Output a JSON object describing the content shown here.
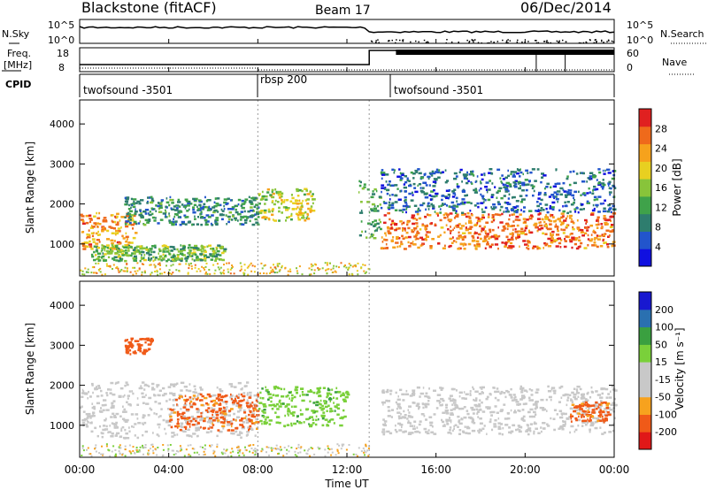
{
  "header": {
    "site": "Blackstone (fitACF)",
    "beam": "Beam 17",
    "date": "06/Dec/2014"
  },
  "summary": {
    "nsky_label": "N.Sky",
    "nsearch_label": "N.Search",
    "noise_ticks": [
      "10^5",
      "10^0"
    ],
    "freq_label_1": "Freq.",
    "freq_label_2": "[MHz]",
    "freq_ticks": [
      "18",
      "8"
    ],
    "nave_label": "Nave",
    "nave_ticks": [
      "60",
      "0"
    ],
    "cpid_label": "CPID",
    "cpid_segments": [
      {
        "name": "twofsound -3501",
        "start_h": 0.0,
        "end_h": 8.0
      },
      {
        "name": "rbsp 200",
        "start_h": 8.0,
        "end_h": 13.0
      },
      {
        "name": "twofsound -3501",
        "start_h": 13.0,
        "end_h": 24.0
      }
    ]
  },
  "colors": {
    "power_scale": [
      "#1010e0",
      "#2255cc",
      "#2e7d6e",
      "#3fa24a",
      "#88c43a",
      "#e8d020",
      "#f6a21c",
      "#ef6a1b",
      "#e02020"
    ],
    "velocity_scale": [
      "#e01818",
      "#f05a18",
      "#f7a21e",
      "#c8c8c8",
      "#c8c8c8",
      "#7ad03a",
      "#3aa040",
      "#2a70b0",
      "#1818d0"
    ]
  },
  "chart_data": [
    {
      "type": "heatmap",
      "ylabel": "Slant Range [km]",
      "yticks": [
        "1000",
        "2000",
        "3000",
        "4000"
      ],
      "ylim": [
        200,
        4600
      ],
      "colorbar_label": "Power [dB]",
      "colorbar_ticks": [
        "4",
        "8",
        "12",
        "16",
        "20",
        "24",
        "28"
      ],
      "regions": [
        {
          "t0": 0.0,
          "t1": 2.5,
          "r_low": 900,
          "r_high": 1800,
          "value": 24
        },
        {
          "t0": 0.5,
          "t1": 6.5,
          "r_low": 600,
          "r_high": 1000,
          "value": 14
        },
        {
          "t0": 2.0,
          "t1": 8.0,
          "r_low": 1500,
          "r_high": 2200,
          "value": 10
        },
        {
          "t0": 8.0,
          "t1": 10.5,
          "r_low": 1600,
          "r_high": 2400,
          "value": 18
        },
        {
          "t0": 12.5,
          "t1": 13.5,
          "r_low": 1100,
          "r_high": 2600,
          "value": 12
        },
        {
          "t0": 13.5,
          "t1": 24.0,
          "r_low": 900,
          "r_high": 1800,
          "value": 26
        },
        {
          "t0": 13.5,
          "t1": 24.0,
          "r_low": 1800,
          "r_high": 2900,
          "value": 7
        }
      ]
    },
    {
      "type": "heatmap",
      "ylabel": "Slant Range [km]",
      "yticks": [
        "1000",
        "2000",
        "3000",
        "4000"
      ],
      "ylim": [
        200,
        4600
      ],
      "xlabel": "Time UT",
      "xticks": [
        "00:00",
        "04:00",
        "08:00",
        "12:00",
        "16:00",
        "20:00",
        "00:00"
      ],
      "xlim": [
        0,
        24
      ],
      "colorbar_label": "Velocity [m s⁻¹]",
      "colorbar_ticks": [
        "200",
        "100",
        "50",
        "15",
        "-15",
        "-50",
        "-100",
        "-200"
      ],
      "regions": [
        {
          "t0": 0.0,
          "t1": 8.0,
          "r_low": 700,
          "r_high": 2100,
          "value": 0
        },
        {
          "t0": 4.0,
          "t1": 8.0,
          "r_low": 900,
          "r_high": 1800,
          "value": -60
        },
        {
          "t0": 8.0,
          "t1": 12.0,
          "r_low": 1000,
          "r_high": 2000,
          "value": 40
        },
        {
          "t0": 2.0,
          "t1": 3.2,
          "r_low": 2800,
          "r_high": 3200,
          "value": -80
        },
        {
          "t0": 13.5,
          "t1": 24.0,
          "r_low": 800,
          "r_high": 2000,
          "value": 0
        },
        {
          "t0": 22.0,
          "t1": 23.7,
          "r_low": 1100,
          "r_high": 1600,
          "value": -60
        }
      ]
    }
  ]
}
